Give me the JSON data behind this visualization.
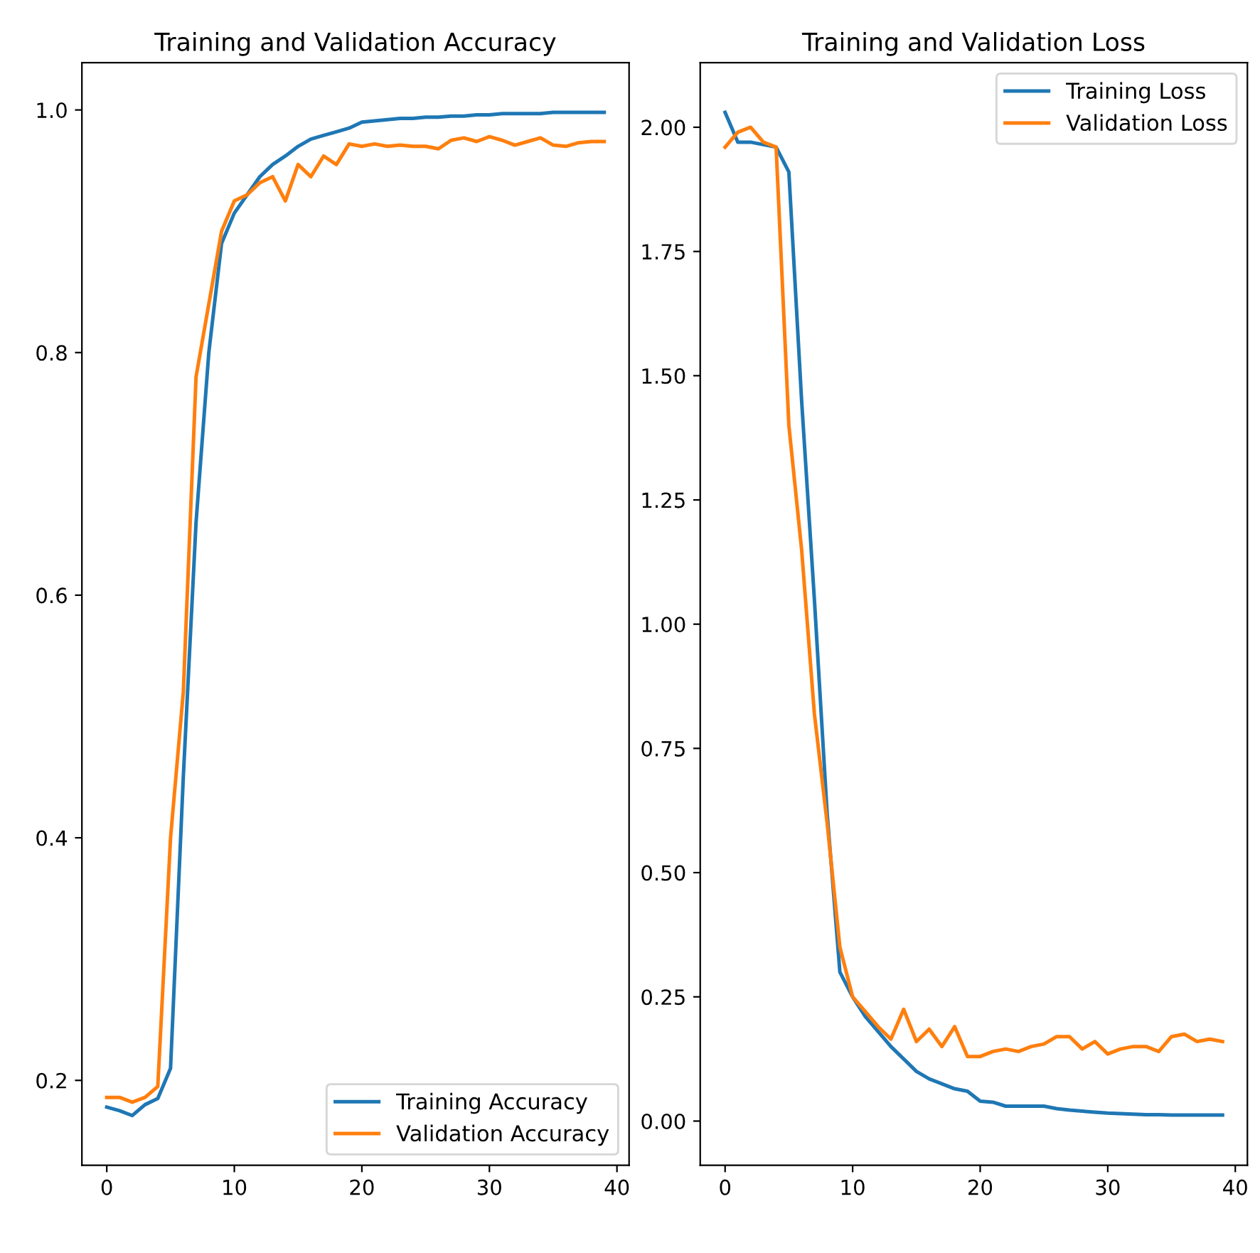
{
  "chart_data": [
    {
      "type": "line",
      "title": "Training and Validation Accuracy",
      "x": [
        0,
        1,
        2,
        3,
        4,
        5,
        6,
        7,
        8,
        9,
        10,
        11,
        12,
        13,
        14,
        15,
        16,
        17,
        18,
        19,
        20,
        21,
        22,
        23,
        24,
        25,
        26,
        27,
        28,
        29,
        30,
        31,
        32,
        33,
        34,
        35,
        36,
        37,
        38,
        39
      ],
      "xlim": [
        -1.95,
        40.95
      ],
      "xticks": [
        0,
        10,
        20,
        30,
        40
      ],
      "ylim": [
        0.13,
        1.039
      ],
      "yticks": [
        {
          "value": 0.2,
          "label": "0.2"
        },
        {
          "value": 0.4,
          "label": "0.4"
        },
        {
          "value": 0.6,
          "label": "0.6"
        },
        {
          "value": 0.8,
          "label": "0.8"
        },
        {
          "value": 1.0,
          "label": "1.0"
        }
      ],
      "legend": "lower right",
      "grid": false,
      "series": [
        {
          "name": "Training Accuracy",
          "color": "#1f77b4",
          "values": [
            0.178,
            0.175,
            0.171,
            0.18,
            0.185,
            0.21,
            0.45,
            0.66,
            0.8,
            0.89,
            0.915,
            0.93,
            0.945,
            0.955,
            0.962,
            0.97,
            0.976,
            0.979,
            0.982,
            0.985,
            0.99,
            0.991,
            0.992,
            0.993,
            0.993,
            0.994,
            0.994,
            0.995,
            0.995,
            0.996,
            0.996,
            0.997,
            0.997,
            0.997,
            0.997,
            0.998,
            0.998,
            0.998,
            0.998,
            0.998
          ]
        },
        {
          "name": "Validation Accuracy",
          "color": "#ff7f0e",
          "values": [
            0.186,
            0.186,
            0.182,
            0.186,
            0.195,
            0.4,
            0.52,
            0.78,
            0.84,
            0.9,
            0.925,
            0.93,
            0.94,
            0.945,
            0.925,
            0.955,
            0.945,
            0.962,
            0.955,
            0.972,
            0.97,
            0.972,
            0.97,
            0.971,
            0.97,
            0.97,
            0.968,
            0.975,
            0.977,
            0.974,
            0.978,
            0.975,
            0.971,
            0.974,
            0.977,
            0.971,
            0.97,
            0.973,
            0.974,
            0.974
          ]
        }
      ]
    },
    {
      "type": "line",
      "title": "Training and Validation Loss",
      "x": [
        0,
        1,
        2,
        3,
        4,
        5,
        6,
        7,
        8,
        9,
        10,
        11,
        12,
        13,
        14,
        15,
        16,
        17,
        18,
        19,
        20,
        21,
        22,
        23,
        24,
        25,
        26,
        27,
        28,
        29,
        30,
        31,
        32,
        33,
        34,
        35,
        36,
        37,
        38,
        39
      ],
      "xlim": [
        -1.95,
        40.95
      ],
      "xticks": [
        0,
        10,
        20,
        30,
        40
      ],
      "ylim": [
        -0.089,
        2.13
      ],
      "yticks": [
        {
          "value": 0,
          "label": "0.00"
        },
        {
          "value": 0.25,
          "label": "0.25"
        },
        {
          "value": 0.5,
          "label": "0.50"
        },
        {
          "value": 0.75,
          "label": "0.75"
        },
        {
          "value": 1.0,
          "label": "1.00"
        },
        {
          "value": 1.25,
          "label": "1.25"
        },
        {
          "value": 1.5,
          "label": "1.50"
        },
        {
          "value": 1.75,
          "label": "1.75"
        },
        {
          "value": 2.0,
          "label": "2.00"
        }
      ],
      "legend": "upper right",
      "grid": false,
      "series": [
        {
          "name": "Training Loss",
          "color": "#1f77b4",
          "values": [
            2.03,
            1.97,
            1.97,
            1.965,
            1.96,
            1.91,
            1.45,
            1.05,
            0.62,
            0.3,
            0.25,
            0.21,
            0.18,
            0.15,
            0.125,
            0.1,
            0.085,
            0.075,
            0.065,
            0.06,
            0.04,
            0.038,
            0.03,
            0.03,
            0.03,
            0.03,
            0.025,
            0.022,
            0.02,
            0.018,
            0.016,
            0.015,
            0.014,
            0.013,
            0.013,
            0.012,
            0.012,
            0.012,
            0.012,
            0.012
          ]
        },
        {
          "name": "Validation Loss",
          "color": "#ff7f0e",
          "values": [
            1.96,
            1.99,
            2.0,
            1.97,
            1.96,
            1.4,
            1.15,
            0.82,
            0.6,
            0.35,
            0.25,
            0.22,
            0.19,
            0.165,
            0.225,
            0.16,
            0.185,
            0.15,
            0.19,
            0.13,
            0.13,
            0.14,
            0.145,
            0.14,
            0.15,
            0.155,
            0.17,
            0.17,
            0.145,
            0.16,
            0.135,
            0.145,
            0.15,
            0.15,
            0.14,
            0.17,
            0.175,
            0.16,
            0.165,
            0.16
          ]
        }
      ]
    }
  ]
}
